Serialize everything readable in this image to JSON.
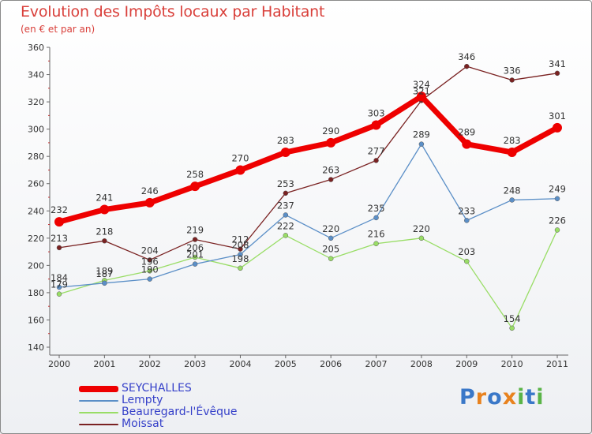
{
  "page": {
    "title": "Evolution des Impôts locaux par Habitant",
    "subtitle": "(en € et par an)"
  },
  "chart_data": {
    "type": "line",
    "title": "Evolution des Impôts locaux par Habitant",
    "subtitle": "(en € et par an)",
    "xlabel": "",
    "ylabel": "",
    "x": [
      "2000",
      "2001",
      "2002",
      "2003",
      "2004",
      "2005",
      "2006",
      "2007",
      "2008",
      "2009",
      "2010",
      "2011"
    ],
    "ylim": [
      140,
      360
    ],
    "yticks": [
      140,
      160,
      180,
      200,
      220,
      240,
      260,
      280,
      300,
      320,
      340,
      360
    ],
    "grid": false,
    "legend_position": "bottom-left",
    "series": [
      {
        "name": "SEYCHALLES",
        "color": "#ee0000",
        "values": [
          232,
          241,
          246,
          258,
          270,
          283,
          290,
          303,
          324,
          289,
          283,
          301
        ]
      },
      {
        "name": "Lempty",
        "color": "#5b8fc7",
        "values": [
          184,
          187,
          190,
          201,
          208,
          237,
          220,
          235,
          289,
          233,
          248,
          249
        ]
      },
      {
        "name": "Beauregard-l'Évêque",
        "color": "#99dd66",
        "values": [
          179,
          189,
          196,
          206,
          198,
          222,
          205,
          216,
          220,
          203,
          154,
          226
        ]
      },
      {
        "name": "Moissat",
        "color": "#7a2222",
        "values": [
          213,
          218,
          204,
          219,
          212,
          253,
          263,
          277,
          321,
          346,
          336,
          341
        ]
      }
    ]
  },
  "logo": {
    "letters": [
      "P",
      "r",
      "o",
      "x",
      "i",
      "t",
      "i"
    ],
    "colors": [
      "#3a78c8",
      "#e8821e",
      "#3a78c8",
      "#e8821e",
      "#5ab447",
      "#3a78c8",
      "#5ab447"
    ]
  }
}
